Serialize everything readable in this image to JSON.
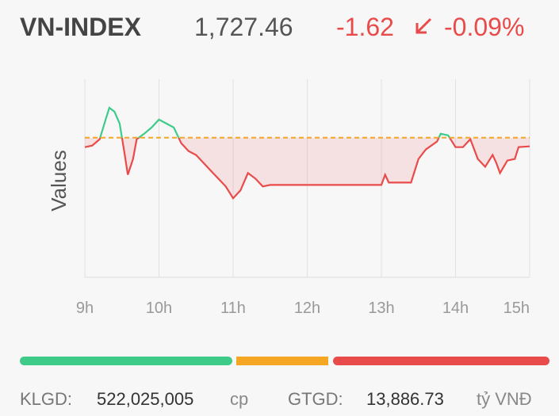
{
  "header": {
    "name": "VN-INDEX",
    "price": "1,727.46",
    "change": "-1.62",
    "change_pct": "-0.09%"
  },
  "chart_data": {
    "type": "line",
    "y_label": "Values",
    "x": [
      9.0,
      9.1,
      9.2,
      9.28,
      9.33,
      9.4,
      9.47,
      9.53,
      9.58,
      9.65,
      9.7,
      9.8,
      9.9,
      10.0,
      10.1,
      10.2,
      10.3,
      10.4,
      10.5,
      10.6,
      10.7,
      10.8,
      10.9,
      11.0,
      11.1,
      11.2,
      11.3,
      11.4,
      11.5,
      12.0,
      13.0,
      13.05,
      13.1,
      13.4,
      13.45,
      13.5,
      13.6,
      13.75,
      13.8,
      13.9,
      14.0,
      14.1,
      14.2,
      14.3,
      14.4,
      14.5,
      14.55,
      14.6,
      14.7,
      14.8,
      14.85,
      15.0
    ],
    "series": [
      {
        "name": "VN-INDEX",
        "color": "#e94a4a",
        "up_color": "#3ecb8a",
        "values": [
          1727.32,
          1727.61,
          1728.79,
          1732.46,
          1734.67,
          1733.93,
          1731.73,
          1726.58,
          1722.17,
          1725.11,
          1728.79,
          1729.82,
          1730.99,
          1732.46,
          1731.73,
          1730.99,
          1728.05,
          1726.58,
          1725.85,
          1724.38,
          1722.91,
          1721.44,
          1719.97,
          1717.77,
          1719.23,
          1722.47,
          1721.44,
          1719.97,
          1720.26,
          1720.26,
          1720.26,
          1722.17,
          1720.7,
          1720.7,
          1722.91,
          1725.11,
          1726.88,
          1728.35,
          1729.82,
          1729.52,
          1727.32,
          1727.32,
          1728.79,
          1725.11,
          1723.64,
          1725.85,
          1724.38,
          1722.47,
          1724.82,
          1725.11,
          1727.32,
          1727.46
        ]
      }
    ],
    "reference": 1729.08,
    "reference_color": "#f5a623",
    "xlim": [
      9,
      15
    ],
    "xticks": [
      {
        "value": 9,
        "label": "9h"
      },
      {
        "value": 10,
        "label": "10h"
      },
      {
        "value": 11,
        "label": "11h"
      },
      {
        "value": 12,
        "label": "12h"
      },
      {
        "value": 13,
        "label": "13h"
      },
      {
        "value": 14,
        "label": "14h"
      },
      {
        "value": 15,
        "label": "15h"
      }
    ],
    "ylim": [
      1703,
      1740
    ],
    "grid": true
  },
  "footer": {
    "volume_label": "KLGD:",
    "volume": "522,025,005",
    "volume_unit": "cp",
    "value_label": "GTGD:",
    "value": "13,886.73",
    "value_unit": "tỷ VNĐ"
  }
}
